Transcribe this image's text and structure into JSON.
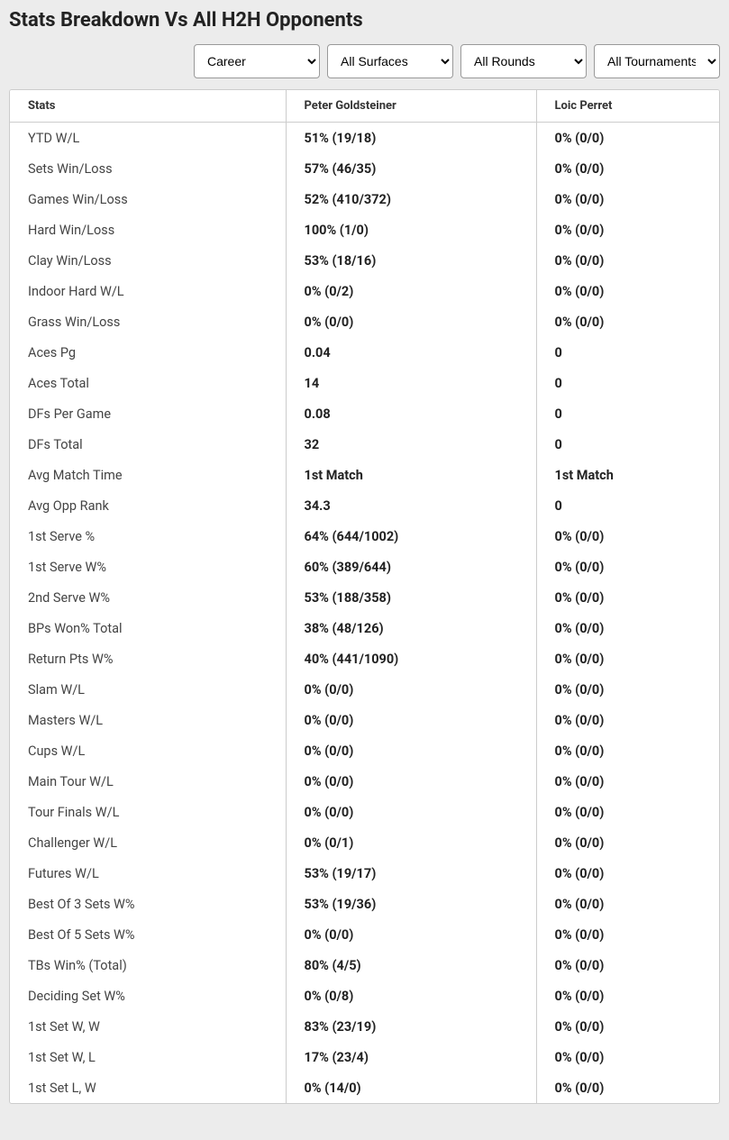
{
  "title": "Stats Breakdown Vs All H2H Opponents",
  "filters": {
    "career": {
      "selected": "Career"
    },
    "surfaces": {
      "selected": "All Surfaces"
    },
    "rounds": {
      "selected": "All Rounds"
    },
    "tournaments": {
      "selected": "All Tournaments"
    }
  },
  "columns": {
    "stats": "Stats",
    "player1": "Peter Goldsteiner",
    "player2": "Loic Perret"
  },
  "rows": [
    {
      "label": "YTD W/L",
      "p1": "51% (19/18)",
      "p2": "0% (0/0)"
    },
    {
      "label": "Sets Win/Loss",
      "p1": "57% (46/35)",
      "p2": "0% (0/0)"
    },
    {
      "label": "Games Win/Loss",
      "p1": "52% (410/372)",
      "p2": "0% (0/0)"
    },
    {
      "label": "Hard Win/Loss",
      "p1": "100% (1/0)",
      "p2": "0% (0/0)"
    },
    {
      "label": "Clay Win/Loss",
      "p1": "53% (18/16)",
      "p2": "0% (0/0)"
    },
    {
      "label": "Indoor Hard W/L",
      "p1": "0% (0/2)",
      "p2": "0% (0/0)"
    },
    {
      "label": "Grass Win/Loss",
      "p1": "0% (0/0)",
      "p2": "0% (0/0)"
    },
    {
      "label": "Aces Pg",
      "p1": "0.04",
      "p2": "0"
    },
    {
      "label": "Aces Total",
      "p1": "14",
      "p2": "0"
    },
    {
      "label": "DFs Per Game",
      "p1": "0.08",
      "p2": "0"
    },
    {
      "label": "DFs Total",
      "p1": "32",
      "p2": "0"
    },
    {
      "label": "Avg Match Time",
      "p1": "1st Match",
      "p2": "1st Match"
    },
    {
      "label": "Avg Opp Rank",
      "p1": "34.3",
      "p2": "0"
    },
    {
      "label": "1st Serve %",
      "p1": "64% (644/1002)",
      "p2": "0% (0/0)"
    },
    {
      "label": "1st Serve W%",
      "p1": "60% (389/644)",
      "p2": "0% (0/0)"
    },
    {
      "label": "2nd Serve W%",
      "p1": "53% (188/358)",
      "p2": "0% (0/0)"
    },
    {
      "label": "BPs Won% Total",
      "p1": "38% (48/126)",
      "p2": "0% (0/0)"
    },
    {
      "label": "Return Pts W%",
      "p1": "40% (441/1090)",
      "p2": "0% (0/0)"
    },
    {
      "label": "Slam W/L",
      "p1": "0% (0/0)",
      "p2": "0% (0/0)"
    },
    {
      "label": "Masters W/L",
      "p1": "0% (0/0)",
      "p2": "0% (0/0)"
    },
    {
      "label": "Cups W/L",
      "p1": "0% (0/0)",
      "p2": "0% (0/0)"
    },
    {
      "label": "Main Tour W/L",
      "p1": "0% (0/0)",
      "p2": "0% (0/0)"
    },
    {
      "label": "Tour Finals W/L",
      "p1": "0% (0/0)",
      "p2": "0% (0/0)"
    },
    {
      "label": "Challenger W/L",
      "p1": "0% (0/1)",
      "p2": "0% (0/0)"
    },
    {
      "label": "Futures W/L",
      "p1": "53% (19/17)",
      "p2": "0% (0/0)"
    },
    {
      "label": "Best Of 3 Sets W%",
      "p1": "53% (19/36)",
      "p2": "0% (0/0)"
    },
    {
      "label": "Best Of 5 Sets W%",
      "p1": "0% (0/0)",
      "p2": "0% (0/0)"
    },
    {
      "label": "TBs Win% (Total)",
      "p1": "80% (4/5)",
      "p2": "0% (0/0)"
    },
    {
      "label": "Deciding Set W%",
      "p1": "0% (0/8)",
      "p2": "0% (0/0)"
    },
    {
      "label": "1st Set W, W",
      "p1": "83% (23/19)",
      "p2": "0% (0/0)"
    },
    {
      "label": "1st Set W, L",
      "p1": "17% (23/4)",
      "p2": "0% (0/0)"
    },
    {
      "label": "1st Set L, W",
      "p1": "0% (14/0)",
      "p2": "0% (0/0)"
    }
  ],
  "style": {
    "background": "#ececec",
    "table_background": "#ffffff",
    "border_color": "#cccccc",
    "header_fontsize": 13,
    "cell_fontsize": 14.5,
    "label_color": "#444444",
    "value_color": "#222222",
    "value_weight": 700
  }
}
